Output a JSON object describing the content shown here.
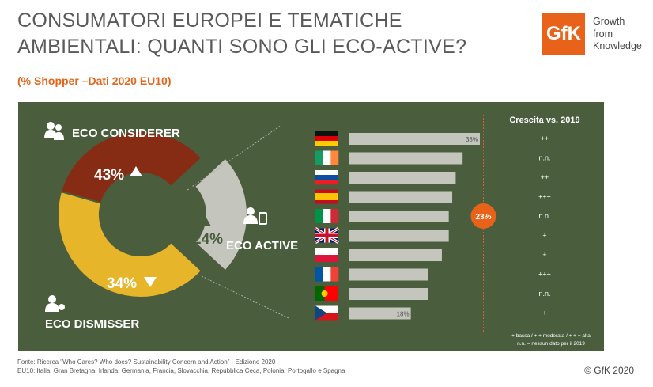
{
  "header": {
    "title_line1": "CONSUMATORI EUROPEI E TEMATICHE",
    "title_line2": "AMBIENTALI: QUANTI SONO GLI ECO-ACTIVE?",
    "subtitle": "(% Shopper –Dati 2020 EU10)"
  },
  "logo": {
    "mark": "GfK",
    "tagline_line1": "Growth",
    "tagline_line2": "from",
    "tagline_line3": "Knowledge"
  },
  "colors": {
    "orange": "#e8621a",
    "panel": "#4a5d3d",
    "considerer": "#e6b52a",
    "dismisser": "#862c14",
    "active": "#c4c6be",
    "bar": "#c4c6be"
  },
  "chart_data": [
    {
      "type": "pie",
      "variant": "donut",
      "segments": [
        {
          "name": "ECO CONSIDERER",
          "value": 43,
          "label": "43%",
          "trend": "up",
          "color": "#e6b52a"
        },
        {
          "name": "ECO DISMISSER",
          "value": 34,
          "label": "34%",
          "trend": "down",
          "color": "#862c14"
        },
        {
          "name": "ECO ACTIVE",
          "value": 24,
          "label": "24%",
          "trend": "up",
          "color": "#c4c6be",
          "exploded": true
        }
      ]
    },
    {
      "type": "bar",
      "orientation": "horizontal",
      "categories_icons": [
        "flag-germany",
        "flag-ireland",
        "flag-slovakia",
        "flag-spain",
        "flag-italy",
        "flag-uk",
        "flag-poland",
        "flag-france",
        "flag-portugal",
        "flag-czech-republic"
      ],
      "values": [
        38,
        33,
        31,
        30,
        29,
        29,
        27,
        23,
        23,
        18
      ],
      "value_labels": [
        "38%",
        "",
        "",
        "",
        "",
        "",
        "",
        "",
        "",
        "18%"
      ],
      "reference_line": {
        "value": 23,
        "label": "23%"
      },
      "growth_header": "Crescita vs. 2019",
      "growth": [
        "++",
        "n.n.",
        "++",
        "+++",
        "n.n.",
        "+",
        "+",
        "+++",
        "n.n.",
        "+"
      ],
      "xlim": [
        0,
        45
      ]
    }
  ],
  "legend": {
    "line1": "+ bassa / + + moderata / + + + alta",
    "line2": "n.n. = nessun dato per il 2019"
  },
  "footer": {
    "source": "Fonte: Ricerca \"Who Cares? Who does? Sustainability Concern and Action\" - Edizione 2020",
    "countries": "EU10: Italia, Gran Bretagna, Irlanda, Germania, Francia, Slovacchia, Repubblica Ceca, Polonia, Portogallo e Spagna",
    "copyright": "© GfK 2020"
  }
}
